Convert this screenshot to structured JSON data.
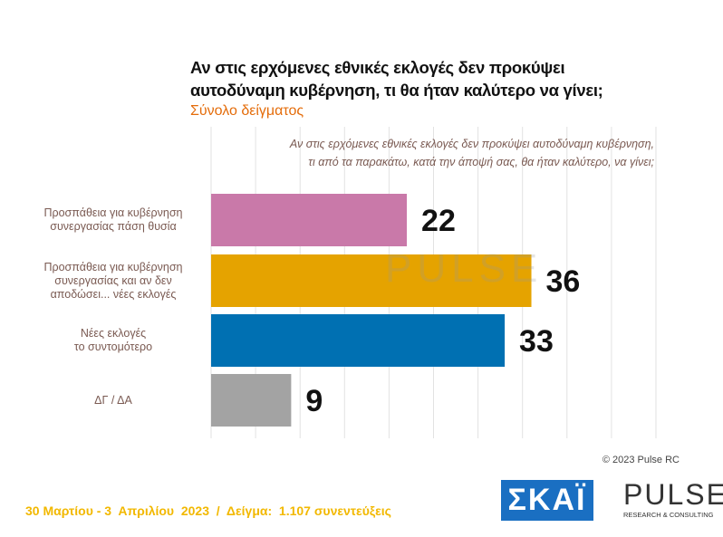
{
  "chart_data": {
    "type": "hbar",
    "title": "Αν στις ερχόμενες εθνικές εκλογές δεν προκύψει\nαυτοδύναμη κυβέρνηση, τι θα ήταν καλύτερο να γίνει;",
    "subtitle": "Σύνολο δείγματος",
    "question": "Αν στις ερχόμενες εθνικές εκλογές δεν προκύψει αυτοδύναμη κυβέρνηση,\nτι από τα παρακάτω, κατά την άποψή σας, θα ήταν καλύτερο, να γίνει;",
    "categories": [
      "Προσπάθεια για κυβέρνηση\nσυνεργασίας πάση θυσία",
      "Προσπάθεια για κυβέρνηση\nσυνεργασίας και αν δεν\nαποδώσει... νέες εκλογές",
      "Νέες εκλογές\nτο συντομότερο",
      "ΔΓ / ΔΑ"
    ],
    "values": [
      22,
      36,
      33,
      9
    ],
    "colors": [
      "#c979a9",
      "#e5a300",
      "#0070b2",
      "#a3a3a3"
    ],
    "xlim": [
      0,
      50
    ],
    "xticks": [
      0,
      5,
      10,
      15,
      20,
      25,
      30,
      35,
      40,
      45,
      50
    ],
    "grid": true
  },
  "footer": {
    "fieldwork": "30 Μαρτίου - 3  Απριλίου  2023  /  Δείγμα:  1.107 συνεντεύξεις",
    "copyright": "© 2023 Pulse RC"
  },
  "logos": {
    "skai": "ΣΚΑΪ",
    "pulse": {
      "name": "PULSE",
      "tagline": "RESEARCH & CONSULTING"
    }
  }
}
